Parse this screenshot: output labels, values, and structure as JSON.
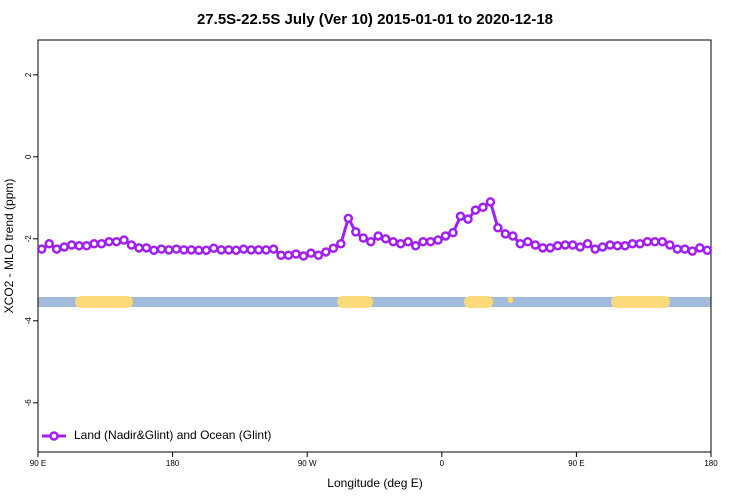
{
  "chart_data": {
    "type": "line",
    "title": "27.5S-22.5S July (Ver 10)   2015-01-01 to 2020-12-18",
    "x_label": "Longitude (deg E)",
    "y_label": "XCO2 - MLO trend (ppm)",
    "xlim": [
      90,
      540
    ],
    "ylim": [
      -7.2,
      2.85
    ],
    "xticks": [
      {
        "value": 90,
        "label": "90 E"
      },
      180,
      {
        "value": 270,
        "label": "90 W"
      },
      {
        "value": 360,
        "label": "0"
      },
      {
        "value": 450,
        "label": "90 E"
      },
      {
        "value": 540,
        "label": "180"
      }
    ],
    "yticks": [
      -6,
      -4,
      -2,
      0,
      2
    ],
    "grid": false,
    "legend": "bottom-left",
    "x": [
      92.5,
      97.5,
      102.5,
      107.5,
      112.5,
      117.5,
      122.5,
      127.5,
      132.5,
      137.5,
      142.5,
      147.5,
      152.5,
      157.5,
      162.5,
      167.5,
      172.5,
      177.5,
      182.5,
      187.5,
      192.5,
      197.5,
      202.5,
      207.5,
      212.5,
      217.5,
      222.5,
      227.5,
      232.5,
      237.5,
      242.5,
      247.5,
      252.5,
      257.5,
      262.5,
      267.5,
      272.5,
      277.5,
      282.5,
      287.5,
      292.5,
      297.5,
      302.5,
      307.5,
      312.5,
      317.5,
      322.5,
      327.5,
      332.5,
      337.5,
      342.5,
      347.5,
      352.5,
      357.5,
      362.5,
      367.5,
      372.5,
      377.5,
      382.5,
      387.5,
      392.5,
      397.5,
      402.5,
      407.5,
      412.5,
      417.5,
      422.5,
      427.5,
      432.5,
      437.5,
      442.5,
      447.5,
      452.5,
      457.5,
      462.5,
      467.5,
      472.5,
      477.5,
      482.5,
      487.5,
      492.5,
      497.5,
      502.5,
      507.5,
      512.5,
      517.5,
      522.5,
      527.5,
      532.5,
      537.5
    ],
    "series": [
      {
        "name": "Land (Nadir&Glint) and Ocean (Glint)",
        "color": "#a020f0",
        "values": [
          -2.25,
          -2.12,
          -2.25,
          -2.2,
          -2.15,
          -2.17,
          -2.17,
          -2.12,
          -2.12,
          -2.07,
          -2.07,
          -2.03,
          -2.15,
          -2.22,
          -2.22,
          -2.28,
          -2.25,
          -2.27,
          -2.25,
          -2.27,
          -2.27,
          -2.28,
          -2.28,
          -2.23,
          -2.27,
          -2.27,
          -2.28,
          -2.25,
          -2.27,
          -2.27,
          -2.27,
          -2.25,
          -2.4,
          -2.4,
          -2.37,
          -2.42,
          -2.35,
          -2.4,
          -2.32,
          -2.23,
          -2.12,
          -1.5,
          -1.83,
          -1.98,
          -2.07,
          -1.93,
          -2.0,
          -2.07,
          -2.12,
          -2.07,
          -2.17,
          -2.07,
          -2.07,
          -2.03,
          -1.93,
          -1.85,
          -1.45,
          -1.52,
          -1.3,
          -1.23,
          -1.1,
          -1.73,
          -1.88,
          -1.93,
          -2.12,
          -2.07,
          -2.15,
          -2.22,
          -2.22,
          -2.17,
          -2.15,
          -2.15,
          -2.2,
          -2.12,
          -2.25,
          -2.2,
          -2.15,
          -2.17,
          -2.17,
          -2.12,
          -2.12,
          -2.07,
          -2.07,
          -2.07,
          -2.15,
          -2.25,
          -2.25,
          -2.3,
          -2.22,
          -2.28
        ]
      }
    ]
  }
}
